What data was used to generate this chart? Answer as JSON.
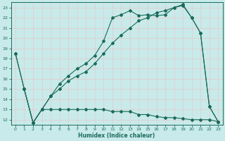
{
  "xlabel": "Humidex (Indice chaleur)",
  "bg_color": "#c8eaea",
  "grid_color": "#d4eeee",
  "line_color": "#1a6b5a",
  "xlim": [
    -0.5,
    23.5
  ],
  "ylim": [
    11.5,
    23.5
  ],
  "xticks": [
    0,
    1,
    2,
    3,
    4,
    5,
    6,
    7,
    8,
    9,
    10,
    11,
    12,
    13,
    14,
    15,
    16,
    17,
    18,
    19,
    20,
    21,
    22,
    23
  ],
  "yticks": [
    12,
    13,
    14,
    15,
    16,
    17,
    18,
    19,
    20,
    21,
    22,
    23
  ],
  "line1_x": [
    0,
    1,
    2,
    3,
    4,
    5,
    6,
    7,
    8,
    9,
    10,
    11,
    12,
    13,
    14,
    15,
    16,
    17,
    18,
    19,
    20,
    21,
    22,
    23
  ],
  "line1_y": [
    18.5,
    15.0,
    11.7,
    13.0,
    14.3,
    15.5,
    16.3,
    17.0,
    17.5,
    18.3,
    19.7,
    22.0,
    22.3,
    22.7,
    22.2,
    22.3,
    22.2,
    22.3,
    23.0,
    23.2,
    22.0,
    20.5,
    13.3,
    11.8
  ],
  "line2_x": [
    0,
    1,
    2,
    3,
    4,
    5,
    6,
    7,
    8,
    9,
    10,
    11,
    12,
    13,
    14,
    15,
    16,
    17,
    18,
    19,
    20,
    21,
    22,
    23
  ],
  "line2_y": [
    18.5,
    15.0,
    11.7,
    13.0,
    13.0,
    13.0,
    13.0,
    13.0,
    13.0,
    13.0,
    13.0,
    12.8,
    12.8,
    12.8,
    12.5,
    12.5,
    12.3,
    12.2,
    12.2,
    12.1,
    12.0,
    12.0,
    12.0,
    11.8
  ],
  "line3_x": [
    1,
    2,
    3,
    4,
    5,
    6,
    7,
    8,
    9,
    10,
    11,
    12,
    13,
    14,
    15,
    16,
    17,
    18,
    19,
    20,
    21,
    22,
    23
  ],
  "line3_y": [
    15.0,
    11.7,
    13.0,
    14.3,
    15.0,
    15.8,
    16.3,
    16.7,
    17.5,
    18.5,
    19.5,
    20.3,
    21.0,
    21.7,
    22.0,
    22.5,
    22.7,
    23.0,
    23.3,
    22.0,
    20.5,
    13.3,
    11.8
  ]
}
